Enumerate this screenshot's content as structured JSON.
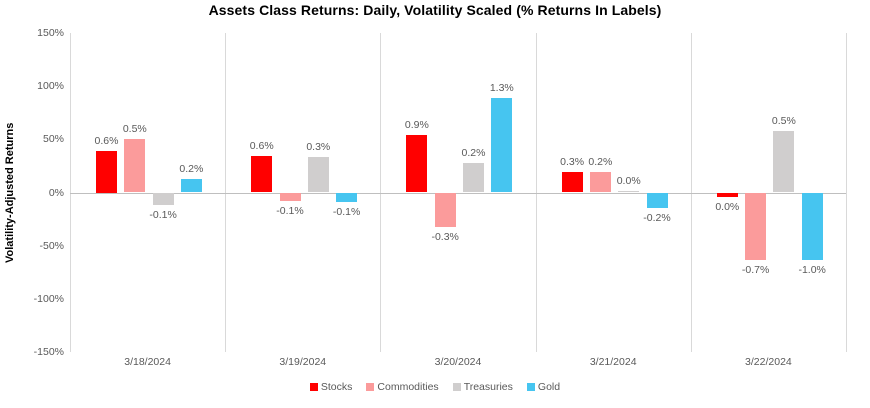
{
  "chart": {
    "title": "Assets Class Returns: Daily,  Volatility Scaled (% Returns In Labels)",
    "y_axis_title": "Volatility-Adjusted Returns"
  },
  "chart_data": {
    "type": "bar",
    "title": "Assets Class Returns: Daily,  Volatility Scaled (% Returns In Labels)",
    "xlabel": "",
    "ylabel": "Volatility-Adjusted Returns",
    "categories": [
      "3/18/2024",
      "3/19/2024",
      "3/20/2024",
      "3/21/2024",
      "3/22/2024"
    ],
    "series": [
      {
        "name": "Stocks",
        "color": "#ff0000",
        "data_labels": [
          "0.6%",
          "0.6%",
          "0.9%",
          "0.3%",
          "0.0%"
        ],
        "returns_pct": [
          0.6,
          0.6,
          0.9,
          0.3,
          0.0
        ],
        "bar_heights_vol_adjusted_pct": [
          39,
          34,
          54,
          19,
          -4
        ]
      },
      {
        "name": "Commodities",
        "color": "#fb9b9b",
        "data_labels": [
          "0.5%",
          "-0.1%",
          "-0.3%",
          "0.2%",
          "-0.7%"
        ],
        "returns_pct": [
          0.5,
          -0.1,
          -0.3,
          0.2,
          -0.7
        ],
        "bar_heights_vol_adjusted_pct": [
          50,
          -8,
          -32,
          19,
          -63
        ]
      },
      {
        "name": "Treasuries",
        "color": "#d0cece",
        "data_labels": [
          "-0.1%",
          "0.3%",
          "0.2%",
          "0.0%",
          "0.5%"
        ],
        "returns_pct": [
          -0.1,
          0.3,
          0.2,
          0.0,
          0.5
        ],
        "bar_heights_vol_adjusted_pct": [
          -12,
          33,
          28,
          1,
          58
        ]
      },
      {
        "name": "Gold",
        "color": "#46c5f0",
        "data_labels": [
          "0.2%",
          "-0.1%",
          "1.3%",
          "-0.2%",
          "-1.0%"
        ],
        "returns_pct": [
          0.2,
          -0.1,
          1.3,
          -0.2,
          -1.0
        ],
        "bar_heights_vol_adjusted_pct": [
          13,
          -9,
          89,
          -15,
          -63
        ]
      }
    ],
    "y_ticks": [
      {
        "value": 150,
        "label": "150%"
      },
      {
        "value": 100,
        "label": "100%"
      },
      {
        "value": 50,
        "label": "50%"
      },
      {
        "value": 0,
        "label": "0%"
      },
      {
        "value": -50,
        "label": "-50%"
      },
      {
        "value": -100,
        "label": "-100%"
      },
      {
        "value": -150,
        "label": "-150%"
      }
    ],
    "ylim": [
      -150,
      150
    ],
    "grid": "vertical category separators only",
    "legend_position": "bottom",
    "colors": {
      "axis_line": "#bfbfbf",
      "separator_line": "#d9d9d9",
      "tick_text": "#595959",
      "title_text": "#000000"
    }
  }
}
